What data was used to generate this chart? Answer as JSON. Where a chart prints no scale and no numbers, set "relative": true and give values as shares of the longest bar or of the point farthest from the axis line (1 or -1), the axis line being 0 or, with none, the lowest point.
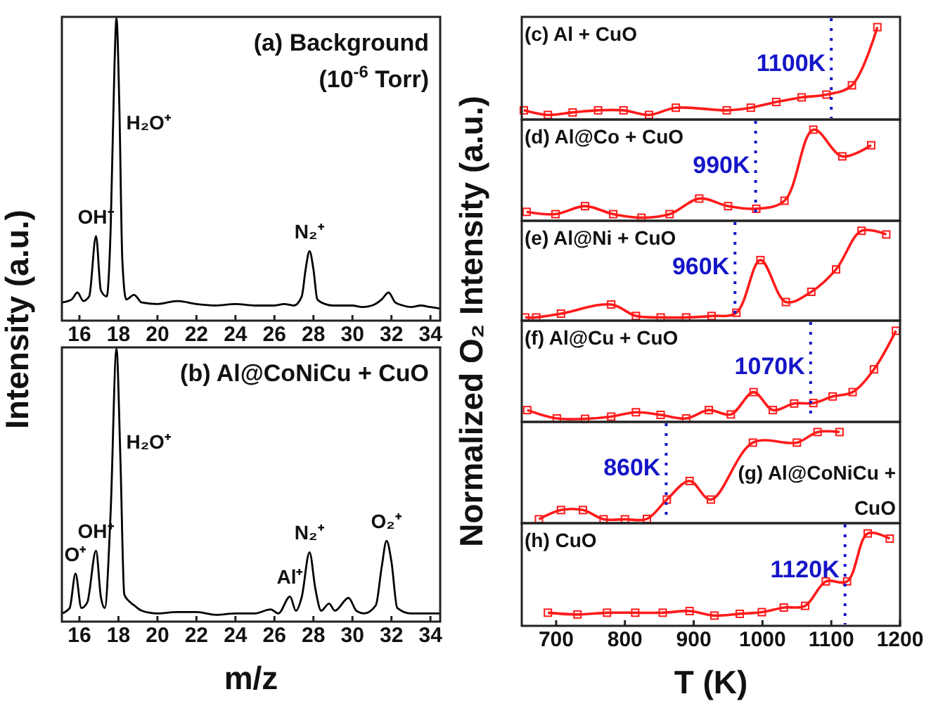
{
  "chart_data": [
    {
      "type": "line",
      "title": "(a) Background",
      "subtitle": "(10$^{-6}$ Torr)",
      "ylabel": "Intensity (a.u.)",
      "relative": true,
      "xlim": [
        15.1,
        34.5
      ],
      "xticks": [
        16,
        18,
        20,
        22,
        24,
        26,
        28,
        30,
        32,
        34
      ],
      "tick_labels": "x",
      "marker": "none",
      "line_style": "solid",
      "series": [
        {
          "color": "#000000",
          "x": [
            15.1,
            15.6,
            15.9,
            16.2,
            16.5,
            16.85,
            17.1,
            17.4,
            17.6,
            17.8,
            17.9,
            18.05,
            18.2,
            18.4,
            18.8,
            19.2,
            20,
            21,
            22,
            23,
            24,
            25,
            26,
            26.5,
            27,
            27.4,
            27.6,
            27.8,
            28.0,
            28.2,
            28.6,
            29,
            30,
            30.5,
            31,
            31.5,
            31.85,
            32.2,
            32.6,
            33,
            33.5,
            34,
            34.5
          ],
          "values": [
            0.06,
            0.07,
            0.093,
            0.065,
            0.08,
            0.28,
            0.1,
            0.08,
            0.3,
            0.85,
            1.0,
            0.7,
            0.2,
            0.07,
            0.085,
            0.06,
            0.055,
            0.065,
            0.055,
            0.05,
            0.055,
            0.05,
            0.05,
            0.055,
            0.05,
            0.08,
            0.17,
            0.23,
            0.17,
            0.07,
            0.055,
            0.05,
            0.05,
            0.045,
            0.05,
            0.07,
            0.093,
            0.06,
            0.05,
            0.045,
            0.05,
            0.045,
            0.04
          ]
        }
      ],
      "annotations": [
        {
          "text": "OH⁺",
          "x": 16.85,
          "y": 0.28
        },
        "H₂O⁺",
        {
          "text": "N₂⁺",
          "x": 27.8,
          "y": 0.23
        }
      ]
    },
    {
      "type": "line",
      "title": "(b) Al@CoNiCu + CuO",
      "xlabel": "m/z",
      "relative": true,
      "xlim": [
        15.1,
        34.5
      ],
      "xticks": [
        16,
        18,
        20,
        22,
        24,
        26,
        28,
        30,
        32,
        34
      ],
      "tick_labels": "x",
      "marker": "none",
      "line_style": "solid",
      "series": [
        {
          "color": "#000000",
          "x": [
            15.1,
            15.5,
            15.8,
            16.1,
            16.4,
            16.85,
            17.1,
            17.3,
            17.6,
            17.9,
            18.1,
            18.3,
            18.5,
            18.8,
            19.2,
            20,
            21,
            22,
            23,
            24,
            25,
            25.8,
            26.2,
            26.8,
            27.1,
            27.4,
            27.8,
            28.1,
            28.4,
            28.8,
            29.1,
            29.8,
            30.2,
            30.6,
            31.2,
            31.5,
            31.75,
            32.0,
            32.3,
            33,
            34,
            34.5
          ],
          "values": [
            0.03,
            0.05,
            0.176,
            0.05,
            0.07,
            0.26,
            0.09,
            0.05,
            0.4,
            1.0,
            0.6,
            0.1,
            0.078,
            0.06,
            0.04,
            0.03,
            0.035,
            0.035,
            0.025,
            0.03,
            0.03,
            0.045,
            0.03,
            0.092,
            0.04,
            0.09,
            0.254,
            0.12,
            0.04,
            0.066,
            0.04,
            0.087,
            0.04,
            0.03,
            0.06,
            0.2,
            0.296,
            0.22,
            0.05,
            0.03,
            0.03,
            0.03
          ]
        }
      ],
      "annotations": [
        {
          "text": "O⁺",
          "x": 15.8,
          "y": 0.176
        },
        {
          "text": "OH⁺",
          "x": 16.85,
          "y": 0.26
        },
        "H₂O⁺",
        {
          "text": "Al⁺",
          "x": 26.8,
          "y": 0.092
        },
        {
          "text": "N₂⁺",
          "x": 27.8,
          "y": 0.254
        },
        {
          "text": "O₂⁺",
          "x": 31.75,
          "y": 0.296
        }
      ]
    },
    {
      "type": "line",
      "title": "(c) Al + CuO",
      "ylabel": "Normalized O₂ Intensity (a.u.)",
      "relative": true,
      "xlim": [
        650,
        1200
      ],
      "tick_labels": false,
      "marker": "square",
      "line_style": "solid",
      "series": [
        {
          "color": "#ff1a1a",
          "x": [
            653,
            688,
            724,
            761,
            798,
            835,
            874,
            948,
            983,
            1020,
            1057,
            1093,
            1130,
            1167
          ],
          "values": [
            0.1,
            0.05,
            0.077,
            0.1,
            0.1,
            0.05,
            0.128,
            0.1,
            0.128,
            0.19,
            0.24,
            0.27,
            0.37,
            1
          ]
        }
      ],
      "ref_lines": [
        {
          "axis": "x",
          "value": 1100,
          "label": "1100K",
          "color": "#1515c8",
          "line_style": "dotted"
        }
      ]
    },
    {
      "type": "line",
      "title": "(d) Al@Co + CuO",
      "relative": true,
      "xlim": [
        650,
        1200
      ],
      "tick_labels": false,
      "marker": "square",
      "line_style": "solid",
      "series": [
        {
          "color": "#ff1a1a",
          "x": [
            657,
            699,
            742,
            783,
            824,
            865,
            908,
            950,
            991,
            1032,
            1074,
            1116,
            1158
          ],
          "values": [
            0.098,
            0.073,
            0.161,
            0.073,
            0.034,
            0.073,
            0.244,
            0.161,
            0.132,
            0.22,
            1,
            0.707,
            0.829
          ]
        }
      ],
      "ref_lines": [
        {
          "axis": "x",
          "value": 990,
          "label": "990K",
          "color": "#1515c8",
          "line_style": "dotted"
        }
      ]
    },
    {
      "type": "line",
      "title": "(e) Al@Ni + CuO",
      "relative": true,
      "xlim": [
        650,
        1200
      ],
      "tick_labels": false,
      "marker": "square",
      "line_style": "solid",
      "series": [
        {
          "color": "#ff1a1a",
          "x": [
            655,
            671,
            707,
            780,
            816,
            852,
            889,
            926,
            962,
            997,
            1034,
            1071,
            1107,
            1144,
            1180
          ],
          "values": [
            0.036,
            0.036,
            0.078,
            0.18,
            0.052,
            0.036,
            0.036,
            0.052,
            0.088,
            0.674,
            0.207,
            0.321,
            0.57,
            1,
            0.959
          ]
        }
      ],
      "ref_lines": [
        {
          "axis": "x",
          "value": 960,
          "label": "960K",
          "color": "#1515c8",
          "line_style": "dotted"
        }
      ]
    },
    {
      "type": "line",
      "title": "(f) Al@Cu + CuO",
      "relative": true,
      "xlim": [
        650,
        1200
      ],
      "tick_labels": false,
      "marker": "square",
      "line_style": "solid",
      "series": [
        {
          "color": "#ff1a1a",
          "x": [
            658,
            701,
            742,
            780,
            816,
            852,
            889,
            922,
            954,
            987,
            1015,
            1046,
            1074,
            1102,
            1131,
            1162,
            1194
          ],
          "values": [
            0.13,
            0.038,
            0.034,
            0.058,
            0.106,
            0.077,
            0.038,
            0.13,
            0.082,
            0.327,
            0.13,
            0.202,
            0.207,
            0.279,
            0.327,
            0.577,
            1
          ]
        }
      ],
      "ref_lines": [
        {
          "axis": "x",
          "value": 1070,
          "label": "1070K",
          "color": "#1515c8",
          "line_style": "dotted"
        }
      ]
    },
    {
      "type": "line",
      "title": "(g) Al@CoNiCu + CuO",
      "relative": true,
      "xlim": [
        650,
        1200
      ],
      "tick_labels": false,
      "marker": "square",
      "line_style": "solid",
      "series": [
        {
          "color": "#ff1a1a",
          "x": [
            675,
            707,
            739,
            769,
            800,
            832,
            861,
            894,
            925,
            986,
            1050,
            1080,
            1112
          ],
          "values": [
            0.043,
            0.144,
            0.144,
            0.043,
            0.043,
            0.047,
            0.259,
            0.463,
            0.259,
            0.884,
            0.884,
            1,
            1
          ]
        }
      ],
      "ref_lines": [
        {
          "axis": "x",
          "value": 860,
          "label": "860K",
          "color": "#1515c8",
          "line_style": "dotted"
        }
      ]
    },
    {
      "type": "line",
      "title": "(h) CuO",
      "xlabel": "T (K)",
      "relative": true,
      "xlim": [
        650,
        1200
      ],
      "xticks": [
        700,
        800,
        900,
        1000,
        1100,
        1200
      ],
      "tick_labels": "x",
      "marker": "square",
      "line_style": "solid",
      "series": [
        {
          "color": "#ff1a1a",
          "x": [
            688,
            731,
            774,
            815,
            855,
            894,
            930,
            967,
            999,
            1031,
            1062,
            1092,
            1123,
            1153,
            1185
          ],
          "values": [
            0.142,
            0.123,
            0.142,
            0.142,
            0.142,
            0.16,
            0.111,
            0.13,
            0.148,
            0.198,
            0.216,
            0.481,
            0.481,
            1,
            0.944
          ]
        }
      ],
      "ref_lines": [
        {
          "axis": "x",
          "value": 1120,
          "label": "1120K",
          "color": "#1515c8",
          "line_style": "dotted"
        }
      ]
    }
  ]
}
